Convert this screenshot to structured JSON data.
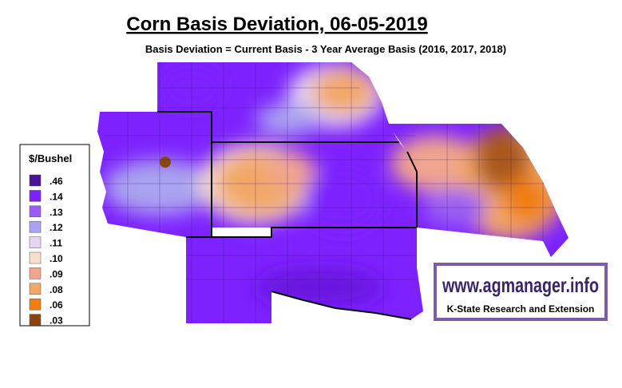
{
  "header": {
    "title": "Corn Basis Deviation, 06-05-2019",
    "subtitle": "Basis Deviation = Current Basis - 3 Year Average Basis (2016, 2017, 2018)"
  },
  "legend": {
    "title": "$/Bushel",
    "items": [
      {
        "label": ".46",
        "color": "#4a1199"
      },
      {
        "label": ".14",
        "color": "#7d22ff"
      },
      {
        "label": ".13",
        "color": "#9a5ef2"
      },
      {
        "label": ".12",
        "color": "#a9a3f0"
      },
      {
        "label": ".11",
        "color": "#e3d6f3"
      },
      {
        "label": ".10",
        "color": "#f6dfd0"
      },
      {
        "label": ".09",
        "color": "#f0a58e"
      },
      {
        "label": ".08",
        "color": "#f2a766"
      },
      {
        "label": ".06",
        "color": "#f07e10"
      },
      {
        "label": ".03",
        "color": "#8a4611"
      }
    ]
  },
  "branding": {
    "url": "www.agmanager.info",
    "org": "K-State Research and Extension"
  }
}
